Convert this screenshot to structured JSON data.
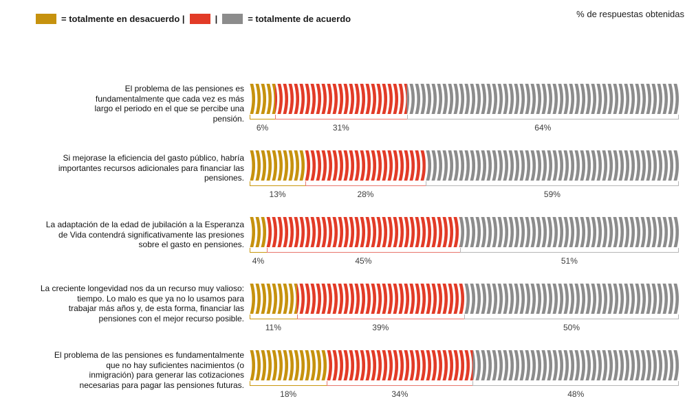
{
  "title": "% de respuestas obtenidas",
  "legend": {
    "disagree_label": "= totalmente en desacuerdo |",
    "separator": "|",
    "agree_label": "= totalmente de acuerdo"
  },
  "chart_data": {
    "type": "bar",
    "variant": "horizontal-stacked-percentage",
    "unit": "%",
    "xlim": [
      0,
      100
    ],
    "bar_texture": "coin-stack-crescent-stripes",
    "legend_position": "top-left",
    "categories": [
      "El problema de las pensiones es\nfundamentalmente que cada vez es más\nlargo el periodo en el que se percibe una\npensión.",
      "Si mejorase la eficiencia del gasto público, habría\nimportantes recursos adicionales para financiar las\npensiones.",
      "La adaptación de la edad de jubilación a la Esperanza\nde Vida contendrá significativamente las presiones\nsobre el gasto en pensiones.",
      "La creciente longevidad nos da un recurso muy valioso:\ntiempo. Lo malo es que ya no lo usamos para\ntrabajar más años y, de esta forma, financiar las\npensiones con el mejor recurso posible.",
      "El problema de las pensiones es fundamentalmente\nque no hay suficientes nacimientos (o\ninmigración) para generar las cotizaciones\nnecesarias para pagar las pensiones futuras."
    ],
    "series": [
      {
        "name": "totalmente en desacuerdo",
        "color": "#C6920E",
        "line_color": "#C8960C",
        "values": [
          6,
          13,
          4,
          11,
          18
        ]
      },
      {
        "name": "",
        "color": "#E23B27",
        "line_color": "#E8756B",
        "values": [
          31,
          28,
          45,
          39,
          34
        ]
      },
      {
        "name": "totalmente de acuerdo",
        "color": "#8C8C8C",
        "line_color": "#B5B5B5",
        "values": [
          64,
          59,
          51,
          50,
          48
        ]
      }
    ],
    "value_labels": [
      [
        "6%",
        "31%",
        "64%"
      ],
      [
        "13%",
        "28%",
        "59%"
      ],
      [
        "4%",
        "45%",
        "51%"
      ],
      [
        "11%",
        "39%",
        "50%"
      ],
      [
        "18%",
        "34%",
        "48%"
      ]
    ]
  }
}
